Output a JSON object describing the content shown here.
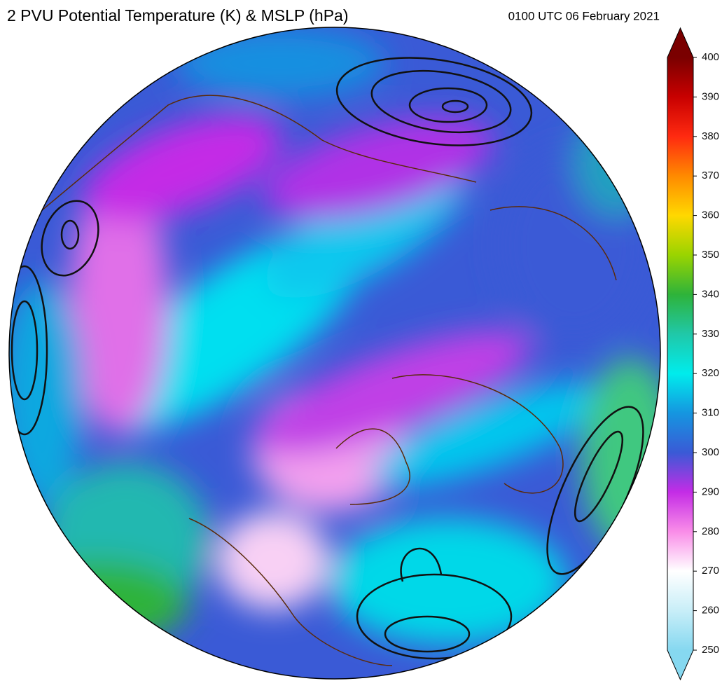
{
  "header": {
    "title": "2 PVU Potential Temperature (K) & MSLP (hPa)",
    "valid_time": "0100 UTC 06 February 2021"
  },
  "colorbar": {
    "lim": [
      250,
      400
    ],
    "ticks": [
      250,
      260,
      270,
      280,
      290,
      300,
      310,
      320,
      330,
      340,
      350,
      360,
      370,
      380,
      390,
      400
    ],
    "colors": [
      "#86d8f0",
      "#c8eef8",
      "#ffffff",
      "#f98de8",
      "#c42ce6",
      "#3a5ad6",
      "#1596e0",
      "#00ecec",
      "#20c8a8",
      "#2eb33a",
      "#9ad400",
      "#ffd800",
      "#ff8a00",
      "#ff2a10",
      "#c80000",
      "#7a0000"
    ]
  }
}
